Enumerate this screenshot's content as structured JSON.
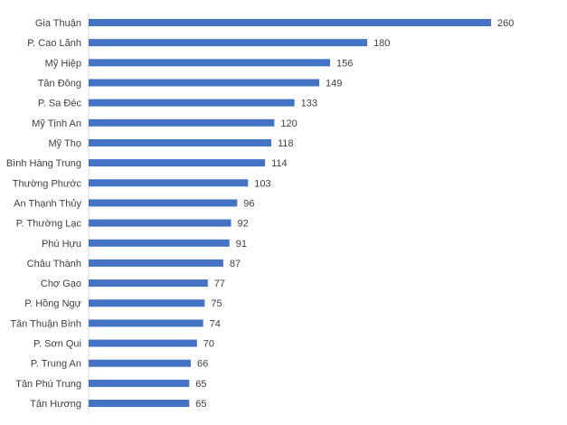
{
  "chart_data": {
    "type": "bar",
    "orientation": "horizontal",
    "title": "",
    "xlabel": "",
    "ylabel": "",
    "categories": [
      "Gia Thuận",
      "P. Cao Lãnh",
      "Mỹ Hiệp",
      "Tân Đông",
      "P. Sa Đéc",
      "Mỹ Tịnh An",
      "Mỹ Thọ",
      "Bình Hàng Trung",
      "Thường Phước",
      "An Thạnh Thủy",
      "P. Thường Lạc",
      "Phú Hựu",
      "Châu Thành",
      "Chợ Gạo",
      "P. Hồng Ngự",
      "Tân Thuận Bình",
      "P. Sơn Qui",
      "P. Trung An",
      "Tân Phú Trung",
      "Tân Hương"
    ],
    "values": [
      260,
      180,
      156,
      149,
      133,
      120,
      118,
      114,
      103,
      96,
      92,
      91,
      87,
      77,
      75,
      74,
      70,
      66,
      65,
      65
    ],
    "xlim": [
      0,
      260
    ],
    "data_labels": true,
    "grid": false,
    "legend": "none",
    "bar_color": "#4472C4",
    "label_color": "#404040",
    "axis_color": "#D9D9D9"
  }
}
